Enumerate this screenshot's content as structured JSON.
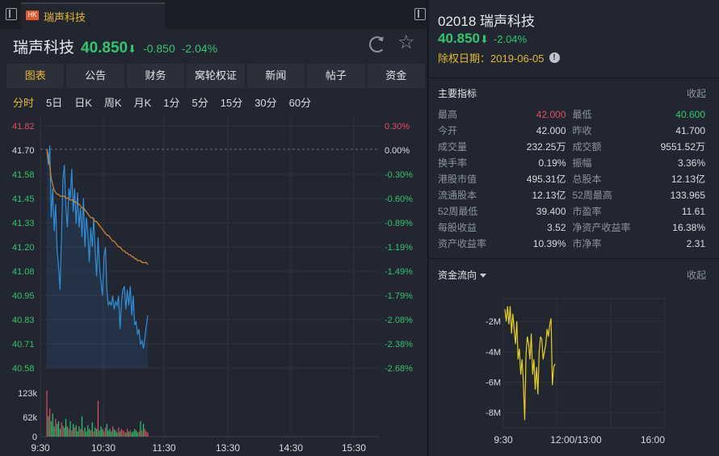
{
  "left": {
    "tab_label": "瑞声科技",
    "tab_badge": "HK",
    "stock_name": "瑞声科技",
    "price": "40.850",
    "arrow": "⬇",
    "change": "-0.850",
    "change_pct": "-2.04%",
    "nav": [
      "图表",
      "公告",
      "财务",
      "窝轮权证",
      "新闻",
      "帖子",
      "资金"
    ],
    "nav_active": 0,
    "periods": [
      "分时",
      "5日",
      "日K",
      "周K",
      "月K",
      "1分",
      "5分",
      "15分",
      "30分",
      "60分"
    ],
    "period_active": 0
  },
  "chart_data": [
    {
      "type": "line",
      "y_left_ticks": [
        "41.82",
        "41.70",
        "41.58",
        "41.45",
        "41.33",
        "41.20",
        "41.08",
        "40.95",
        "40.83",
        "40.71",
        "40.58"
      ],
      "y_right_ticks": [
        "0.30%",
        "0.00%",
        "-0.30%",
        "-0.60%",
        "-0.89%",
        "-1.19%",
        "-1.49%",
        "-1.79%",
        "-2.08%",
        "-2.38%",
        "-2.68%"
      ],
      "ylim": [
        40.58,
        41.82
      ],
      "prev_close": 41.7,
      "x_ticks": [
        "9:30",
        "10:30",
        "11:30",
        "13:30",
        "14:30",
        "15:30"
      ],
      "volume_ticks": [
        "123k",
        "62k",
        "0"
      ],
      "colors": {
        "price": "#2f8fd8",
        "avg": "#d88a2c",
        "vol_up": "#e04f5f",
        "vol_down": "#2fc76d"
      },
      "series": [
        {
          "name": "price",
          "values": [
            41.7,
            41.62,
            41.72,
            41.35,
            41.5,
            41.28,
            41.42,
            41.18,
            41.1,
            40.98,
            41.25,
            41.55,
            41.62,
            41.4,
            41.3,
            41.5,
            41.45,
            41.6,
            41.38,
            41.5,
            41.32,
            41.48,
            41.3,
            41.4,
            41.25,
            41.45,
            41.2,
            41.35,
            41.28,
            41.12,
            41.3,
            41.2,
            41.35,
            41.18,
            41.05,
            41.25,
            41.1,
            41.02,
            40.95,
            41.15,
            41.2,
            40.98,
            40.9,
            40.92,
            40.9,
            40.95,
            40.88,
            40.92,
            40.9,
            40.95,
            40.78,
            40.92,
            40.98,
            41.0,
            40.88,
            40.98,
            40.9,
            41.0,
            40.85,
            40.95,
            40.8,
            40.82,
            40.75,
            40.78,
            40.7,
            40.72,
            40.68,
            40.74,
            40.8,
            40.85
          ]
        },
        {
          "name": "avg",
          "values": [
            41.7,
            41.66,
            41.62,
            41.55,
            41.52,
            41.49,
            41.48,
            41.47,
            41.47,
            41.46,
            41.46,
            41.46,
            41.46,
            41.45,
            41.45,
            41.45,
            41.44,
            41.44,
            41.44,
            41.43,
            41.43,
            41.42,
            41.42,
            41.41,
            41.4,
            41.4,
            41.39,
            41.38,
            41.37,
            41.36,
            41.35,
            41.35,
            41.34,
            41.33,
            41.33,
            41.32,
            41.31,
            41.3,
            41.29,
            41.28,
            41.27,
            41.26,
            41.26,
            41.25,
            41.24,
            41.23,
            41.23,
            41.22,
            41.21,
            41.2,
            41.2,
            41.19,
            41.18,
            41.18,
            41.17,
            41.17,
            41.16,
            41.16,
            41.15,
            41.15,
            41.14,
            41.14,
            41.13,
            41.13,
            41.13,
            41.12,
            41.12,
            41.12,
            41.12,
            41.11
          ]
        }
      ],
      "volume": [
        90,
        40,
        55,
        30,
        45,
        20,
        35,
        25,
        30,
        15,
        28,
        22,
        18,
        35,
        20,
        15,
        30,
        12,
        25,
        18,
        22,
        10,
        20,
        15,
        40,
        12,
        18,
        10,
        22,
        15,
        12,
        28,
        10,
        18,
        15,
        70,
        12,
        20,
        15,
        10,
        18,
        25,
        12,
        15,
        10,
        20,
        15,
        12,
        8,
        18,
        10,
        15,
        12,
        10,
        8,
        15,
        10,
        12,
        8,
        10,
        15,
        12,
        8,
        10,
        30,
        12,
        25,
        15,
        10,
        8
      ],
      "volume_up": [
        1,
        0,
        1,
        0,
        0,
        0,
        1,
        0,
        0,
        0,
        1,
        1,
        0,
        0,
        0,
        1,
        0,
        1,
        0,
        1,
        0,
        0,
        0,
        1,
        0,
        1,
        0,
        0,
        0,
        0,
        1,
        0,
        1,
        0,
        0,
        1,
        0,
        0,
        0,
        1,
        1,
        0,
        0,
        0,
        0,
        1,
        0,
        0,
        0,
        1,
        0,
        1,
        1,
        1,
        0,
        1,
        0,
        1,
        0,
        0,
        0,
        0,
        0,
        1,
        0,
        1,
        0,
        1,
        1,
        1
      ]
    },
    {
      "type": "line",
      "title": "资金流向",
      "y_ticks": [
        "-2M",
        "-4M",
        "-6M",
        "-8M"
      ],
      "ylim": [
        -9,
        -0.5
      ],
      "x_ticks": [
        "9:30",
        "12:00/13:00",
        "16:00"
      ],
      "colors": {
        "flow": "#e6d01e"
      },
      "series": [
        {
          "name": "flow",
          "values": [
            -1.2,
            -2.0,
            -1.0,
            -2.2,
            -1.0,
            -2.8,
            -1.5,
            -2.5,
            -3.5,
            -2.0,
            -4.5,
            -3.8,
            -5.5,
            -4.5,
            -6.0,
            -8.5,
            -4.2,
            -3.0,
            -3.5,
            -4.5,
            -2.8,
            -5.5,
            -4.5,
            -6.5,
            -5.0,
            -6.8,
            -4.0,
            -3.0,
            -3.2,
            -4.5,
            -4.0,
            -3.5,
            -2.5,
            -3.0,
            -2.2,
            -1.8,
            -6.2,
            -5.0,
            -4.8
          ]
        }
      ]
    }
  ],
  "right": {
    "title": "02018 瑞声科技",
    "price": "40.850",
    "arrow": "⬇",
    "change_pct": "-2.04%",
    "exdiv_label": "除权日期：",
    "exdiv_date": "2019-06-05",
    "metrics_header": "主要指标",
    "collapse": "收起",
    "metrics": [
      [
        {
          "label": "最高",
          "value": "42.000",
          "tone": "up"
        },
        {
          "label": "最低",
          "value": "40.600",
          "tone": "down"
        }
      ],
      [
        {
          "label": "今开",
          "value": "42.000",
          "tone": ""
        },
        {
          "label": "昨收",
          "value": "41.700",
          "tone": ""
        }
      ],
      [
        {
          "label": "成交量",
          "value": "232.25万",
          "tone": ""
        },
        {
          "label": "成交额",
          "value": "9551.52万",
          "tone": ""
        }
      ],
      [
        {
          "label": "换手率",
          "value": "0.19%",
          "tone": ""
        },
        {
          "label": "振幅",
          "value": "3.36%",
          "tone": ""
        }
      ],
      [
        {
          "label": "港股市值",
          "value": "495.31亿",
          "tone": ""
        },
        {
          "label": "总股本",
          "value": "12.13亿",
          "tone": ""
        }
      ],
      [
        {
          "label": "流通股本",
          "value": "12.13亿",
          "tone": ""
        },
        {
          "label": "52周最高",
          "value": "133.965",
          "tone": ""
        }
      ],
      [
        {
          "label": "52周最低",
          "value": "39.400",
          "tone": ""
        },
        {
          "label": "市盈率",
          "value": "11.61",
          "tone": ""
        }
      ],
      [
        {
          "label": "每股收益",
          "value": "3.52",
          "tone": ""
        },
        {
          "label": "净资产收益率",
          "value": "16.38%",
          "tone": ""
        }
      ],
      [
        {
          "label": "资产收益率",
          "value": "10.39%",
          "tone": ""
        },
        {
          "label": "市净率",
          "value": "2.31",
          "tone": ""
        }
      ]
    ],
    "flow_header": "资金流向",
    "flow_collapse": "收起"
  }
}
